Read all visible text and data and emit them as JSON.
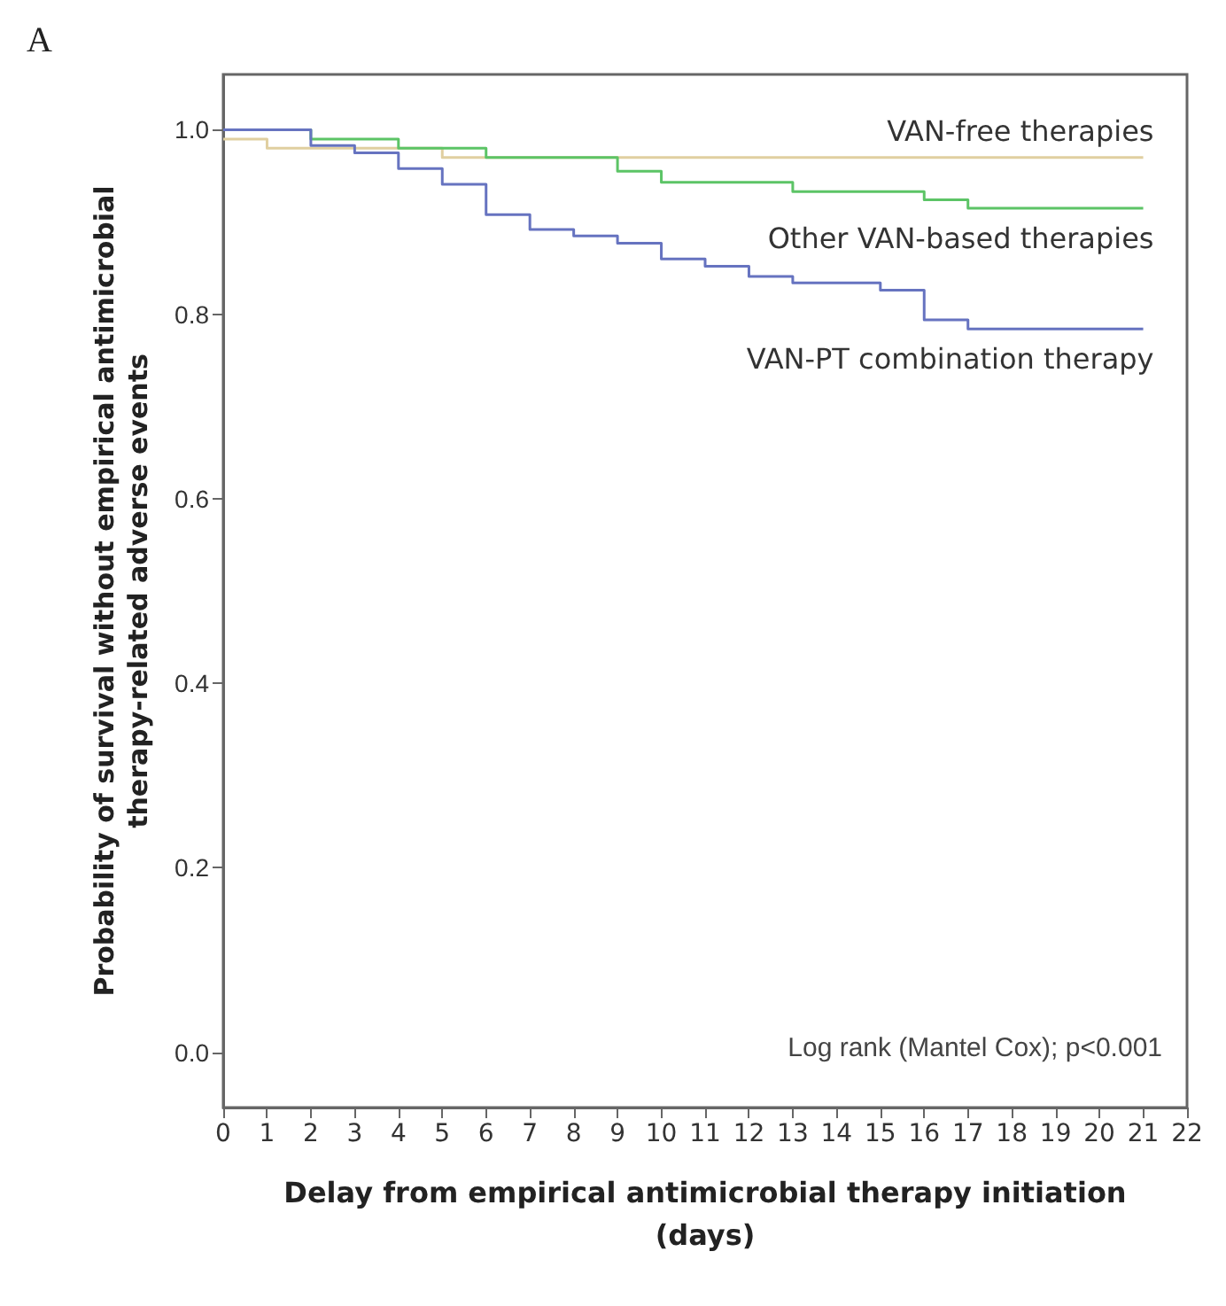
{
  "chart_data": {
    "type": "step",
    "title": "A",
    "xlabel": "Delay from empirical antimicrobial therapy initiation (days)",
    "ylabel": "Probability of survival without empirical antimicrobial therapy-related adverse events",
    "annotations": [
      "Log rank (Mantel Cox); p<0.001"
    ],
    "series": [
      {
        "name": "VAN-free therapies",
        "color": "#e0cfa0",
        "x": [
          0,
          1,
          5,
          21
        ],
        "values": [
          0.99,
          0.98,
          0.97,
          0.97
        ]
      },
      {
        "name": "Other VAN-based therapies",
        "color": "#5cc466",
        "x": [
          0,
          2,
          4,
          6,
          9,
          10,
          13,
          16,
          17,
          21
        ],
        "values": [
          1.0,
          0.99,
          0.98,
          0.97,
          0.955,
          0.943,
          0.933,
          0.924,
          0.915,
          0.915
        ]
      },
      {
        "name": "VAN-PT combination therapy",
        "color": "#6673c0",
        "x": [
          0,
          2,
          3,
          4,
          5,
          6,
          7,
          8,
          9,
          10,
          11,
          12,
          13,
          15,
          16,
          17,
          21
        ],
        "values": [
          1.0,
          0.983,
          0.975,
          0.958,
          0.941,
          0.908,
          0.892,
          0.885,
          0.877,
          0.86,
          0.852,
          0.841,
          0.834,
          0.826,
          0.794,
          0.784,
          0.784
        ]
      }
    ],
    "xlim": [
      0,
      22
    ],
    "xticks": [
      0,
      1,
      2,
      3,
      4,
      5,
      6,
      7,
      8,
      9,
      10,
      11,
      12,
      13,
      14,
      15,
      16,
      17,
      18,
      19,
      20,
      21,
      22
    ],
    "ylim": [
      -0.06,
      1.06
    ],
    "yticks": [
      {
        "value": 0,
        "label": "0.0"
      },
      {
        "value": 0.2,
        "label": "0.2"
      },
      {
        "value": 0.4,
        "label": "0.4"
      },
      {
        "value": 0.6,
        "label": "0.6"
      },
      {
        "value": 0.8,
        "label": "0.8"
      },
      {
        "value": 1,
        "label": "1.0"
      }
    ],
    "grid": false,
    "legend": false
  }
}
